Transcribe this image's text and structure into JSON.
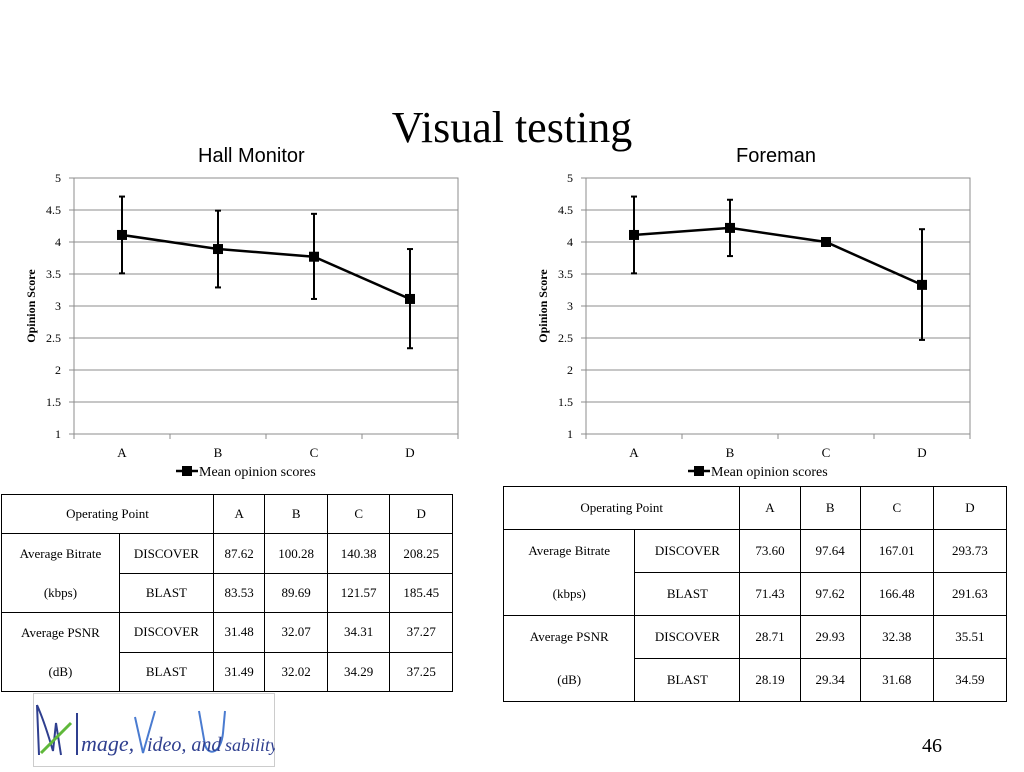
{
  "slide": {
    "title": "Visual testing",
    "page_number": "46"
  },
  "logo": {
    "text": "Image, Video, and Usability"
  },
  "chart_data": [
    {
      "type": "line",
      "title": "Hall Monitor",
      "ylabel": "Opinion Score",
      "xlabel": "",
      "categories": [
        "A",
        "B",
        "C",
        "D"
      ],
      "ylim": [
        1,
        5
      ],
      "yticks": [
        "1",
        "1.5",
        "2",
        "2.5",
        "3",
        "3.5",
        "4",
        "4.5",
        "5"
      ],
      "grid": true,
      "legend": "bottom",
      "series": [
        {
          "name": "Mean opinion scores",
          "values": [
            4.11,
            3.89,
            3.77,
            3.11
          ],
          "error_low": [
            3.51,
            3.29,
            3.11,
            2.34
          ],
          "error_high": [
            4.71,
            4.49,
            4.44,
            3.89
          ]
        }
      ]
    },
    {
      "type": "line",
      "title": "Foreman",
      "ylabel": "Opinion Score",
      "xlabel": "",
      "categories": [
        "A",
        "B",
        "C",
        "D"
      ],
      "ylim": [
        1,
        5
      ],
      "yticks": [
        "1",
        "1.5",
        "2",
        "2.5",
        "3",
        "3.5",
        "4",
        "4.5",
        "5"
      ],
      "grid": true,
      "legend": "bottom",
      "series": [
        {
          "name": "Mean opinion scores",
          "values": [
            4.11,
            4.22,
            4.0,
            3.33
          ],
          "error_low": [
            3.51,
            3.78,
            4.0,
            2.47
          ],
          "error_high": [
            4.71,
            4.66,
            4.0,
            4.2
          ]
        }
      ]
    }
  ],
  "tables": [
    {
      "header": [
        "Operating Point",
        "A",
        "B",
        "C",
        "D"
      ],
      "groups": [
        {
          "label": "Average Bitrate",
          "unit": "(kbps)",
          "rows": [
            {
              "method": "DISCOVER",
              "values": [
                "87.62",
                "100.28",
                "140.38",
                "208.25"
              ]
            },
            {
              "method": "BLAST",
              "values": [
                "83.53",
                "89.69",
                "121.57",
                "185.45"
              ]
            }
          ]
        },
        {
          "label": "Average PSNR",
          "unit": "(dB)",
          "rows": [
            {
              "method": "DISCOVER",
              "values": [
                "31.48",
                "32.07",
                "34.31",
                "37.27"
              ]
            },
            {
              "method": "BLAST",
              "values": [
                "31.49",
                "32.02",
                "34.29",
                "37.25"
              ]
            }
          ]
        }
      ]
    },
    {
      "header": [
        "Operating Point",
        "A",
        "B",
        "C",
        "D"
      ],
      "groups": [
        {
          "label": "Average Bitrate",
          "unit": "(kbps)",
          "rows": [
            {
              "method": "DISCOVER",
              "values": [
                "73.60",
                "97.64",
                "167.01",
                "293.73"
              ]
            },
            {
              "method": "BLAST",
              "values": [
                "71.43",
                "97.62",
                "166.48",
                "291.63"
              ]
            }
          ]
        },
        {
          "label": "Average PSNR",
          "unit": "(dB)",
          "rows": [
            {
              "method": "DISCOVER",
              "values": [
                "28.71",
                "29.93",
                "32.38",
                "35.51"
              ]
            },
            {
              "method": "BLAST",
              "values": [
                "28.19",
                "29.34",
                "31.68",
                "34.59"
              ]
            }
          ]
        }
      ]
    }
  ]
}
